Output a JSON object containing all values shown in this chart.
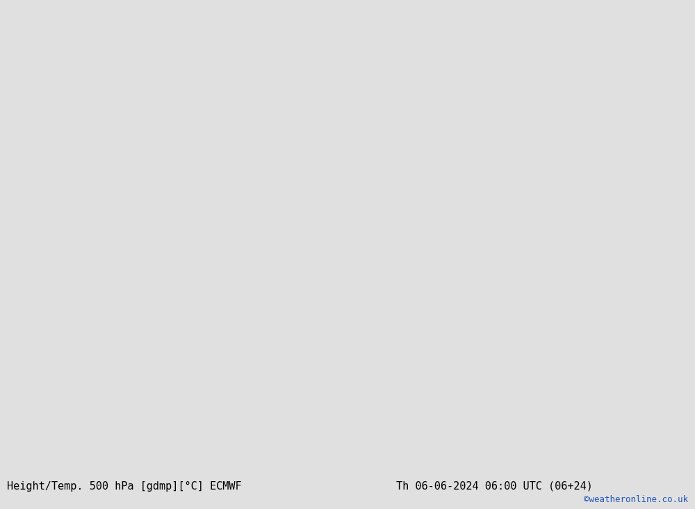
{
  "title_left": "Height/Temp. 500 hPa [gdmp][°C] ECMWF",
  "title_right": "Th 06-06-2024 06:00 UTC (06+24)",
  "watermark": "©weatheronline.co.uk",
  "background_color": "#e0e0e0",
  "land_color": "#cccccc",
  "australia_color": "#c8e8a8",
  "nz_color": "#c8e8a8",
  "ocean_color": "#e0e0e0",
  "fig_width": 10.0,
  "fig_height": 7.33,
  "dpi": 100,
  "extent": [
    100,
    185,
    -62,
    5
  ],
  "geopotential_color": "#000000",
  "temp_orange_color": "#e08020",
  "temp_cyan_color": "#00c8c8",
  "temp_green_color": "#60c840",
  "temp_red_color": "#e00000",
  "bottom_bar_color": "#c8c8c8",
  "border_color": "#999999",
  "coastline_color": "#888888"
}
